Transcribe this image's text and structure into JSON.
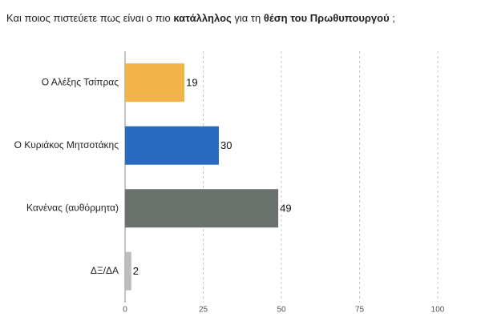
{
  "chart_data": {
    "type": "hbar",
    "title_parts": [
      "Και ποιος πιστεύετε πως είναι ο πιο ",
      "κατάλληλος",
      " για τη ",
      "θέση του Πρωθυπουργού",
      " ;"
    ],
    "categories": [
      "Ο Αλέξης Τσίπρας",
      "Ο Κυριάκος Μητσοτάκης",
      "Κανένας (αυθόρμητα)",
      "ΔΞ/ΔΑ"
    ],
    "values": [
      19,
      30,
      49,
      2
    ],
    "colors": [
      "#f0b449",
      "#2b6bbf",
      "#6b716c",
      "#bdbdbd"
    ],
    "xlim": [
      0,
      100
    ],
    "xticks": [
      0,
      25,
      50,
      75,
      100
    ],
    "grid": true
  }
}
